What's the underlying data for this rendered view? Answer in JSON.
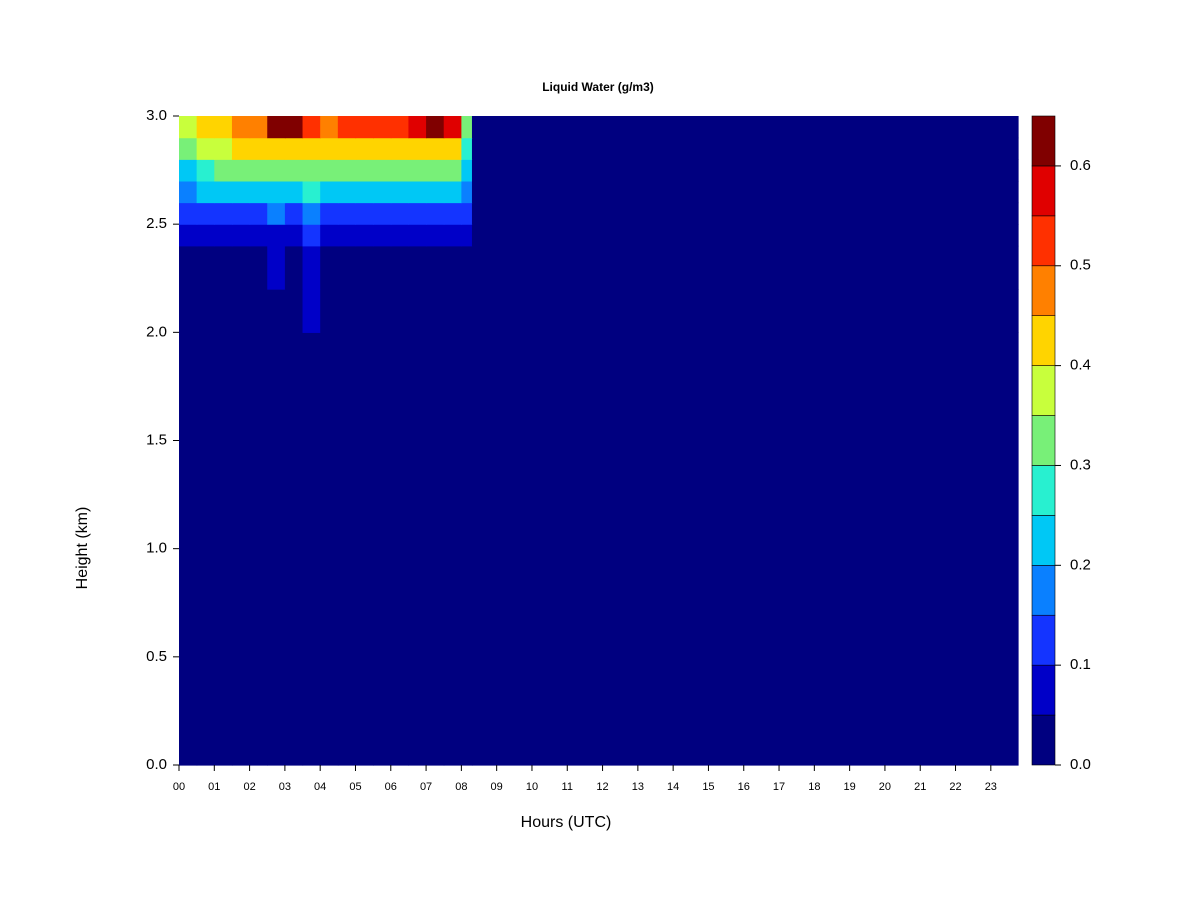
{
  "chart_data": {
    "type": "contour",
    "title": "Liquid Water (g/m3)",
    "x_label": "Hours (UTC)",
    "y_label": "Height (km)",
    "xlim": [
      0,
      23.77
    ],
    "ylim": [
      0,
      3
    ],
    "xticks": [
      {
        "value": 0,
        "label": "00"
      },
      {
        "value": 1,
        "label": "01"
      },
      {
        "value": 2,
        "label": "02"
      },
      {
        "value": 3,
        "label": "03"
      },
      {
        "value": 4,
        "label": "04"
      },
      {
        "value": 5,
        "label": "05"
      },
      {
        "value": 6,
        "label": "06"
      },
      {
        "value": 7,
        "label": "07"
      },
      {
        "value": 8,
        "label": "08"
      },
      {
        "value": 9,
        "label": "09"
      },
      {
        "value": 10,
        "label": "10"
      },
      {
        "value": 11,
        "label": "11"
      },
      {
        "value": 12,
        "label": "12"
      },
      {
        "value": 13,
        "label": "13"
      },
      {
        "value": 14,
        "label": "14"
      },
      {
        "value": 15,
        "label": "15"
      },
      {
        "value": 16,
        "label": "16"
      },
      {
        "value": 17,
        "label": "17"
      },
      {
        "value": 18,
        "label": "18"
      },
      {
        "value": 19,
        "label": "19"
      },
      {
        "value": 20,
        "label": "20"
      },
      {
        "value": 21,
        "label": "21"
      },
      {
        "value": 22,
        "label": "22"
      },
      {
        "value": 23,
        "label": "23"
      }
    ],
    "yticks": [
      {
        "value": 0,
        "label": "0.0"
      },
      {
        "value": 0.5,
        "label": "0.5"
      },
      {
        "value": 1,
        "label": "1.0"
      },
      {
        "value": 1.5,
        "label": "1.5"
      },
      {
        "value": 2,
        "label": "2.0"
      },
      {
        "value": 2.5,
        "label": "2.5"
      },
      {
        "value": 3,
        "label": "3.0"
      }
    ],
    "x_edges": [
      0,
      0.5,
      1,
      1.5,
      2,
      2.5,
      3,
      3.5,
      4,
      4.5,
      5,
      5.5,
      6,
      6.5,
      7,
      7.5,
      8,
      8.3,
      23.77
    ],
    "y_edges": [
      0,
      2.0,
      2.2,
      2.4,
      2.5,
      2.6,
      2.7,
      2.8,
      2.9,
      3.0
    ],
    "z": [
      [
        0,
        0,
        0,
        0,
        0,
        0,
        0,
        0,
        0,
        0,
        0,
        0,
        0,
        0,
        0,
        0,
        0,
        0
      ],
      [
        0,
        0,
        0,
        0,
        0,
        0,
        0,
        0.06,
        0,
        0,
        0,
        0,
        0,
        0,
        0,
        0,
        0,
        0
      ],
      [
        0,
        0,
        0,
        0,
        0,
        0.06,
        0,
        0.09,
        0,
        0,
        0,
        0,
        0,
        0,
        0,
        0,
        0,
        0
      ],
      [
        0.06,
        0.06,
        0.06,
        0.07,
        0.06,
        0.08,
        0.07,
        0.12,
        0.07,
        0.06,
        0.07,
        0.06,
        0.07,
        0.06,
        0.07,
        0.07,
        0.06,
        0
      ],
      [
        0.12,
        0.13,
        0.12,
        0.13,
        0.13,
        0.16,
        0.14,
        0.18,
        0.14,
        0.13,
        0.14,
        0.13,
        0.14,
        0.13,
        0.14,
        0.13,
        0.1,
        0
      ],
      [
        0.18,
        0.2,
        0.21,
        0.22,
        0.21,
        0.24,
        0.23,
        0.26,
        0.23,
        0.22,
        0.23,
        0.22,
        0.23,
        0.22,
        0.23,
        0.22,
        0.16,
        0
      ],
      [
        0.24,
        0.28,
        0.3,
        0.32,
        0.31,
        0.33,
        0.32,
        0.33,
        0.32,
        0.31,
        0.32,
        0.31,
        0.32,
        0.32,
        0.33,
        0.32,
        0.22,
        0
      ],
      [
        0.32,
        0.36,
        0.38,
        0.4,
        0.41,
        0.44,
        0.42,
        0.42,
        0.41,
        0.4,
        0.41,
        0.41,
        0.42,
        0.43,
        0.44,
        0.43,
        0.28,
        0
      ],
      [
        0.37,
        0.41,
        0.43,
        0.45,
        0.47,
        0.6,
        0.62,
        0.52,
        0.48,
        0.5,
        0.52,
        0.5,
        0.54,
        0.55,
        0.6,
        0.57,
        0.34,
        0
      ]
    ],
    "levels": [
      0,
      0.05,
      0.1,
      0.15,
      0.2,
      0.25,
      0.3,
      0.35,
      0.4,
      0.45,
      0.5,
      0.55,
      0.6,
      0.65
    ],
    "colors": [
      "#000080",
      "#0000c8",
      "#1434ff",
      "#0a80ff",
      "#00c8f5",
      "#28f0d0",
      "#78f078",
      "#c8ff3c",
      "#ffd400",
      "#ff8000",
      "#ff3000",
      "#e00000",
      "#800000"
    ],
    "colorbar_ticks": [
      {
        "value": 0,
        "label": "0.0"
      },
      {
        "value": 0.1,
        "label": "0.1"
      },
      {
        "value": 0.2,
        "label": "0.2"
      },
      {
        "value": 0.3,
        "label": "0.3"
      },
      {
        "value": 0.4,
        "label": "0.4"
      },
      {
        "value": 0.5,
        "label": "0.5"
      },
      {
        "value": 0.6,
        "label": "0.6"
      }
    ]
  }
}
